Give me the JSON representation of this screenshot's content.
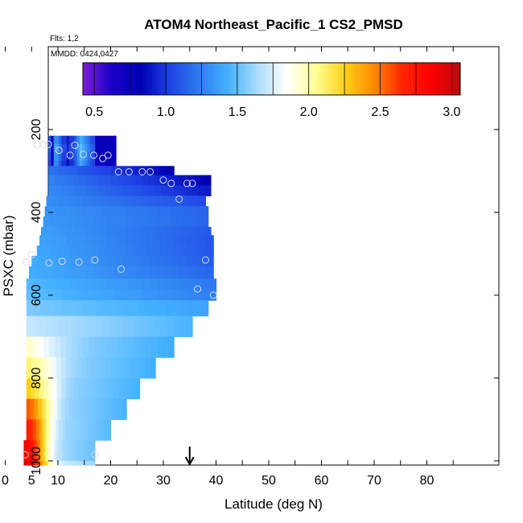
{
  "chart_data": {
    "type": "heatmap",
    "title": "ATOM4 Northeast_Pacific_1 CS2_PMSD",
    "flights_note": "Flts: 1,2",
    "dates_note": "MMDD: 0424,0427",
    "xlabel": "Latitude (deg N)",
    "ylabel": "PSXC (mbar)",
    "xlim": [
      0,
      85
    ],
    "ylim": [
      1010,
      0
    ],
    "x_ticks": [
      0,
      5,
      10,
      20,
      30,
      40,
      50,
      60,
      70,
      80
    ],
    "x_tick_labels": [
      "0",
      "5",
      "10",
      "20",
      "30",
      "40",
      "50",
      "60",
      "70",
      "80"
    ],
    "x_minor_ticks": [
      15,
      25,
      35,
      45,
      55,
      65,
      75,
      85
    ],
    "y_ticks": [
      200,
      400,
      600,
      800,
      1000
    ],
    "y_tick_labels": [
      "200",
      "400",
      "600",
      "800",
      "1000"
    ],
    "colorbar": {
      "min": 0.42,
      "max": 3.06,
      "ticks": [
        0.5,
        1.0,
        1.5,
        2.0,
        2.5,
        3.0
      ],
      "tick_labels": [
        "0.5",
        "1.0",
        "1.5",
        "2.0",
        "2.5",
        "3.0"
      ],
      "colors": [
        "#7b1fd6",
        "#1a00c8",
        "#0000b4",
        "#1f44e6",
        "#2e7cf0",
        "#43b1ff",
        "#a9dcff",
        "#ffffff",
        "#ffff99",
        "#ffd21a",
        "#ff8c00",
        "#ff2600",
        "#ff0000",
        "#b50d0d"
      ]
    },
    "rows": [
      {
        "p_top": 215,
        "p_bot": 235,
        "lat_start": 8.2,
        "lat_end": 21.0,
        "values": [
          1.07,
          0.78,
          1.29,
          1.29,
          1.14,
          1.0,
          1.0,
          0.9,
          1.0,
          1.0,
          1.12,
          1.28,
          1.42,
          1.35,
          1.27,
          1.18,
          1.08,
          1.06,
          0.76,
          0.74,
          0.74,
          0.74,
          0.74,
          0.74,
          0.74,
          0.74
        ]
      },
      {
        "p_top": 235,
        "p_bot": 255,
        "lat_start": 8.2,
        "lat_end": 21.0,
        "values": [
          1.13,
          0.79,
          1.36,
          1.36,
          1.2,
          1.06,
          1.05,
          0.95,
          1.05,
          1.05,
          1.18,
          1.35,
          1.5,
          1.42,
          1.33,
          1.24,
          1.13,
          1.11,
          0.8,
          0.78,
          0.78,
          0.78,
          0.78,
          0.78,
          0.78,
          0.78
        ]
      },
      {
        "p_top": 255,
        "p_bot": 275,
        "lat_start": 8.2,
        "lat_end": 21.0,
        "values": [
          1.08,
          0.79,
          1.31,
          1.31,
          1.16,
          1.02,
          1.01,
          0.91,
          1.02,
          1.01,
          1.14,
          1.3,
          1.44,
          1.37,
          1.29,
          1.2,
          1.09,
          1.07,
          0.77,
          0.75,
          0.75,
          0.75,
          0.75,
          0.75,
          0.75,
          0.75
        ]
      },
      {
        "p_top": 275,
        "p_bot": 288,
        "lat_start": 8.2,
        "lat_end": 21.0,
        "values": [
          1.04,
          0.74,
          1.27,
          1.27,
          1.11,
          0.97,
          0.97,
          0.86,
          0.97,
          0.97,
          1.1,
          1.26,
          1.4,
          1.33,
          1.24,
          1.16,
          1.05,
          1.03,
          0.73,
          0.72,
          0.72,
          0.72,
          0.72,
          0.72,
          0.72,
          0.72
        ]
      },
      {
        "p_top": 288,
        "p_bot": 310,
        "lat_start": 8.2,
        "lat_end": 32.0,
        "values": [
          1.2,
          1.18,
          1.16,
          1.15,
          1.14,
          1.12,
          1.1,
          1.09,
          1.08,
          1.06,
          1.04,
          1.03,
          1.02,
          1.0,
          0.98,
          0.97,
          0.96,
          0.94,
          0.92,
          0.91,
          0.9,
          0.88,
          0.86,
          0.85,
          0.84,
          0.82
        ]
      },
      {
        "p_top": 310,
        "p_bot": 335,
        "lat_start": 8.2,
        "lat_end": 39.0,
        "values": [
          1.25,
          1.23,
          1.22,
          1.2,
          1.18,
          1.16,
          1.15,
          1.13,
          1.11,
          1.1,
          1.08,
          1.06,
          1.04,
          1.03,
          1.01,
          0.99,
          0.98,
          0.96,
          0.94,
          0.92,
          0.91,
          0.89,
          0.87,
          0.86,
          0.84,
          0.82
        ]
      },
      {
        "p_top": 335,
        "p_bot": 360,
        "lat_start": 8.2,
        "lat_end": 39.0,
        "values": [
          1.28,
          1.27,
          1.25,
          1.24,
          1.22,
          1.21,
          1.19,
          1.18,
          1.16,
          1.15,
          1.13,
          1.12,
          1.1,
          1.09,
          1.07,
          1.06,
          1.04,
          1.03,
          1.01,
          1.0,
          0.98,
          0.97,
          0.95,
          0.94,
          0.92,
          0.91
        ]
      },
      {
        "p_top": 360,
        "p_bot": 385,
        "lat_start": 7.8,
        "lat_end": 38.0,
        "values": [
          1.3,
          1.29,
          1.28,
          1.27,
          1.26,
          1.25,
          1.24,
          1.23,
          1.22,
          1.21,
          1.2,
          1.19,
          1.18,
          1.17,
          1.16,
          1.15,
          1.14,
          1.13,
          1.12,
          1.11,
          1.1,
          1.09,
          1.08,
          1.07,
          1.06,
          1.05
        ]
      },
      {
        "p_top": 385,
        "p_bot": 410,
        "lat_start": 7.5,
        "lat_end": 38.5,
        "values": [
          1.33,
          1.32,
          1.31,
          1.31,
          1.3,
          1.29,
          1.28,
          1.28,
          1.27,
          1.26,
          1.25,
          1.25,
          1.24,
          1.23,
          1.22,
          1.22,
          1.21,
          1.2,
          1.19,
          1.19,
          1.18,
          1.17,
          1.16,
          1.16,
          1.15,
          1.14
        ]
      },
      {
        "p_top": 410,
        "p_bot": 435,
        "lat_start": 7.2,
        "lat_end": 38.5,
        "values": [
          1.34,
          1.33,
          1.33,
          1.32,
          1.31,
          1.3,
          1.29,
          1.29,
          1.28,
          1.27,
          1.26,
          1.26,
          1.25,
          1.24,
          1.23,
          1.23,
          1.22,
          1.21,
          1.2,
          1.2,
          1.19,
          1.18,
          1.17,
          1.17,
          1.16,
          1.15
        ]
      },
      {
        "p_top": 435,
        "p_bot": 455,
        "lat_start": 6.8,
        "lat_end": 39.0,
        "values": [
          1.36,
          1.35,
          1.34,
          1.33,
          1.32,
          1.31,
          1.3,
          1.29,
          1.28,
          1.27,
          1.26,
          1.25,
          1.24,
          1.23,
          1.22,
          1.21,
          1.2,
          1.19,
          1.18,
          1.17,
          1.16,
          1.15,
          1.14,
          1.13,
          1.12,
          1.11
        ]
      },
      {
        "p_top": 455,
        "p_bot": 480,
        "lat_start": 6.5,
        "lat_end": 39.5,
        "values": [
          1.38,
          1.37,
          1.36,
          1.35,
          1.33,
          1.32,
          1.31,
          1.3,
          1.29,
          1.28,
          1.27,
          1.26,
          1.24,
          1.23,
          1.22,
          1.21,
          1.2,
          1.19,
          1.18,
          1.17,
          1.15,
          1.14,
          1.13,
          1.12,
          1.11,
          1.1
        ]
      },
      {
        "p_top": 480,
        "p_bot": 505,
        "lat_start": 6.0,
        "lat_end": 39.5,
        "values": [
          1.39,
          1.38,
          1.37,
          1.35,
          1.34,
          1.33,
          1.32,
          1.31,
          1.3,
          1.29,
          1.27,
          1.26,
          1.25,
          1.24,
          1.23,
          1.22,
          1.2,
          1.19,
          1.18,
          1.17,
          1.16,
          1.15,
          1.14,
          1.12,
          1.11,
          1.1
        ]
      },
      {
        "p_top": 505,
        "p_bot": 530,
        "lat_start": 5.0,
        "lat_end": 39.5,
        "values": [
          1.41,
          1.4,
          1.39,
          1.38,
          1.36,
          1.35,
          1.34,
          1.33,
          1.32,
          1.3,
          1.29,
          1.28,
          1.27,
          1.26,
          1.25,
          1.24,
          1.22,
          1.21,
          1.2,
          1.19,
          1.18,
          1.17,
          1.15,
          1.14,
          1.13,
          1.12
        ]
      },
      {
        "p_top": 530,
        "p_bot": 560,
        "lat_start": 4.5,
        "lat_end": 39.5,
        "values": [
          1.42,
          1.41,
          1.4,
          1.39,
          1.38,
          1.37,
          1.36,
          1.35,
          1.34,
          1.32,
          1.31,
          1.3,
          1.29,
          1.28,
          1.27,
          1.26,
          1.25,
          1.24,
          1.23,
          1.22,
          1.21,
          1.2,
          1.19,
          1.18,
          1.17,
          1.16
        ]
      },
      {
        "p_top": 560,
        "p_bot": 585,
        "lat_start": 4.0,
        "lat_end": 40.0,
        "values": [
          1.47,
          1.46,
          1.45,
          1.44,
          1.43,
          1.42,
          1.41,
          1.4,
          1.39,
          1.38,
          1.37,
          1.36,
          1.35,
          1.34,
          1.33,
          1.32,
          1.31,
          1.3,
          1.29,
          1.28,
          1.27,
          1.26,
          1.25,
          1.24,
          1.23,
          1.22
        ]
      },
      {
        "p_top": 585,
        "p_bot": 612,
        "lat_start": 4.0,
        "lat_end": 40.0,
        "values": [
          1.49,
          1.48,
          1.47,
          1.46,
          1.45,
          1.44,
          1.43,
          1.42,
          1.41,
          1.4,
          1.39,
          1.38,
          1.37,
          1.36,
          1.35,
          1.34,
          1.33,
          1.32,
          1.31,
          1.3,
          1.29,
          1.28,
          1.27,
          1.26,
          1.25,
          1.24
        ]
      },
      {
        "p_top": 612,
        "p_bot": 650,
        "lat_start": 4.0,
        "lat_end": 38.5,
        "values": [
          1.55,
          1.54,
          1.53,
          1.53,
          1.52,
          1.51,
          1.51,
          1.5,
          1.49,
          1.49,
          1.48,
          1.47,
          1.47,
          1.46,
          1.45,
          1.45,
          1.44,
          1.43,
          1.43,
          1.42,
          1.41,
          1.41,
          1.4,
          1.39,
          1.39,
          1.38
        ]
      },
      {
        "p_top": 650,
        "p_bot": 700,
        "lat_start": 4.0,
        "lat_end": 35.5,
        "values": [
          1.7,
          1.69,
          1.68,
          1.67,
          1.66,
          1.65,
          1.64,
          1.63,
          1.62,
          1.61,
          1.6,
          1.59,
          1.58,
          1.57,
          1.56,
          1.55,
          1.54,
          1.53,
          1.52,
          1.51,
          1.5,
          1.49,
          1.48,
          1.47,
          1.46,
          1.45
        ]
      },
      {
        "p_top": 700,
        "p_bot": 750,
        "lat_start": 4.0,
        "lat_end": 32.0,
        "values": [
          1.95,
          1.9,
          1.85,
          1.8,
          1.76,
          1.72,
          1.68,
          1.65,
          1.62,
          1.6,
          1.58,
          1.56,
          1.55,
          1.54,
          1.53,
          1.52,
          1.51,
          1.5,
          1.49,
          1.48,
          1.47,
          1.46,
          1.45,
          1.44,
          1.43,
          1.42
        ]
      },
      {
        "p_top": 750,
        "p_bot": 800,
        "lat_start": 4.0,
        "lat_end": 28.5,
        "values": [
          2.1,
          2.06,
          2.02,
          1.96,
          1.9,
          1.82,
          1.75,
          1.7,
          1.65,
          1.62,
          1.6,
          1.58,
          1.56,
          1.55,
          1.54,
          1.53,
          1.52,
          1.51,
          1.5,
          1.49,
          1.48,
          1.47,
          1.46,
          1.45,
          1.44,
          1.43
        ]
      },
      {
        "p_top": 800,
        "p_bot": 850,
        "lat_start": 4.0,
        "lat_end": 25.5,
        "values": [
          2.25,
          2.2,
          2.15,
          2.08,
          2.0,
          1.92,
          1.83,
          1.75,
          1.68,
          1.63,
          1.6,
          1.58,
          1.57,
          1.56,
          1.55,
          1.54,
          1.53,
          1.52,
          1.51,
          1.5,
          1.49,
          1.48,
          1.47,
          1.46,
          1.45,
          1.44
        ]
      },
      {
        "p_top": 850,
        "p_bot": 900,
        "lat_start": 4.0,
        "lat_end": 23.0,
        "values": [
          2.55,
          2.5,
          2.42,
          2.3,
          2.18,
          2.05,
          1.92,
          1.82,
          1.73,
          1.66,
          1.62,
          1.6,
          1.58,
          1.57,
          1.56,
          1.55,
          1.54,
          1.53,
          1.52,
          1.51,
          1.5,
          1.49,
          1.48,
          1.47,
          1.46,
          1.45
        ]
      },
      {
        "p_top": 900,
        "p_bot": 950,
        "lat_start": 4.0,
        "lat_end": 20.0,
        "values": [
          2.7,
          2.65,
          2.58,
          2.48,
          2.35,
          2.2,
          2.05,
          1.92,
          1.82,
          1.74,
          1.68,
          1.64,
          1.61,
          1.6,
          1.59,
          1.58,
          1.57,
          1.56,
          1.55,
          1.54,
          1.53,
          1.52,
          1.51,
          1.5,
          1.49,
          1.48
        ]
      },
      {
        "p_top": 950,
        "p_bot": 1000,
        "lat_start": 3.5,
        "lat_end": 17.0,
        "values": [
          2.9,
          2.85,
          2.78,
          2.7,
          2.6,
          2.48,
          2.34,
          2.2,
          2.06,
          1.94,
          1.84,
          1.76,
          1.7,
          1.66,
          1.63,
          1.61,
          1.6,
          1.59,
          1.58,
          1.57,
          1.56,
          1.55,
          1.54,
          1.53,
          1.52,
          1.51
        ]
      },
      {
        "p_top": 1000,
        "p_bot": 1010,
        "lat_start": 3.5,
        "lat_end": 17.0,
        "values": [
          3.0,
          2.95,
          2.88,
          2.8,
          2.7,
          2.58,
          2.44,
          2.3,
          2.16,
          2.04,
          1.94,
          1.86,
          1.8,
          1.76,
          1.73,
          1.71,
          1.7,
          1.69,
          1.68,
          1.67,
          1.66,
          1.65,
          1.64,
          1.63,
          1.62,
          1.61
        ]
      }
    ],
    "sample_points": [
      {
        "lat": 6.0,
        "p": 237
      },
      {
        "lat": 7.3,
        "p": 236
      },
      {
        "lat": 8.2,
        "p": 236
      },
      {
        "lat": 10.2,
        "p": 250
      },
      {
        "lat": 12.3,
        "p": 262
      },
      {
        "lat": 13.2,
        "p": 238
      },
      {
        "lat": 14.8,
        "p": 260
      },
      {
        "lat": 16.8,
        "p": 262
      },
      {
        "lat": 18.5,
        "p": 270
      },
      {
        "lat": 19.5,
        "p": 262
      },
      {
        "lat": 21.5,
        "p": 302
      },
      {
        "lat": 23.5,
        "p": 302
      },
      {
        "lat": 26.0,
        "p": 302
      },
      {
        "lat": 27.5,
        "p": 302
      },
      {
        "lat": 30.0,
        "p": 322
      },
      {
        "lat": 31.5,
        "p": 330
      },
      {
        "lat": 33.0,
        "p": 368
      },
      {
        "lat": 34.5,
        "p": 330
      },
      {
        "lat": 35.5,
        "p": 330
      },
      {
        "lat": 4.0,
        "p": 520
      },
      {
        "lat": 5.0,
        "p": 502
      },
      {
        "lat": 8.3,
        "p": 522
      },
      {
        "lat": 10.8,
        "p": 518
      },
      {
        "lat": 14.0,
        "p": 520
      },
      {
        "lat": 17.0,
        "p": 515
      },
      {
        "lat": 22.0,
        "p": 537
      },
      {
        "lat": 36.5,
        "p": 585
      },
      {
        "lat": 38.0,
        "p": 515
      },
      {
        "lat": 39.5,
        "p": 600
      },
      {
        "lat": 3.8,
        "p": 985
      },
      {
        "lat": 10.2,
        "p": 985
      },
      {
        "lat": 17.0,
        "p": 985
      }
    ],
    "arrow_marker": {
      "lat": 35.0
    }
  }
}
